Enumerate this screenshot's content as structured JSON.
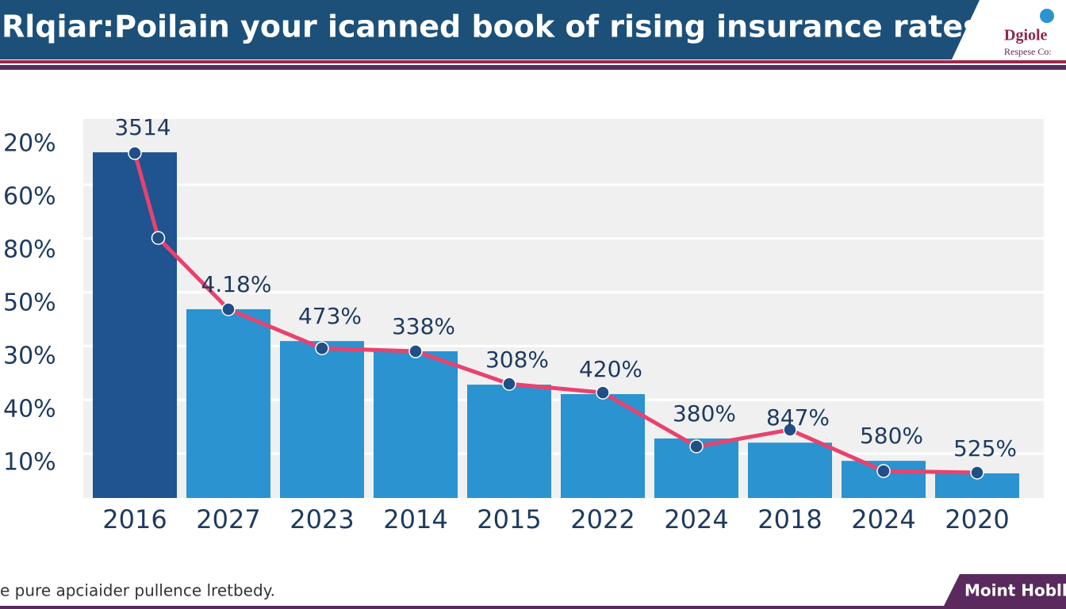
{
  "chart_data": {
    "type": "bar",
    "title": "Rlqiar:Poilain your icanned book of rising insurance rates",
    "logo_title": "Dgiole",
    "logo_subtitle": "Respese Co:",
    "footer_note": "e pure apciaider pullence lretbedy.",
    "footer_brand": "Moint Hoblk",
    "y_axis_labels": [
      "20%",
      "60%",
      "80%",
      "50%",
      "30%",
      "40%",
      "10%"
    ],
    "categories": [
      "2016",
      "2027",
      "2023",
      "2014",
      "2015",
      "2022",
      "2024",
      "2018",
      "2024",
      "2020"
    ],
    "values": [
      91.2,
      49.8,
      41.4,
      38.7,
      29.9,
      27.4,
      15.7,
      14.6,
      9.8,
      6.5
    ],
    "point_labels": [
      "3514",
      "4.18%",
      "473%",
      "338%",
      "308%",
      "420%",
      "380%",
      "847%",
      "580%",
      "525%"
    ],
    "colors": [
      "#1f5491",
      "#2a93d0",
      "#2a93d0",
      "#2a93d0",
      "#2a93d0",
      "#2a93d0",
      "#2a93d0",
      "#2a93d0",
      "#2a93d0",
      "#2a93d0"
    ],
    "line": {
      "color": "#e8426e",
      "marker_color": "#1f4f86",
      "x": [
        0,
        0.25,
        1,
        2,
        3,
        4,
        5,
        6,
        7,
        8,
        9
      ],
      "values": [
        91,
        68.6,
        49.8,
        39.5,
        38.7,
        30.1,
        27.8,
        13.6,
        18,
        7.1,
        6.7
      ]
    },
    "ylim": [
      0,
      100
    ],
    "grid": true
  }
}
